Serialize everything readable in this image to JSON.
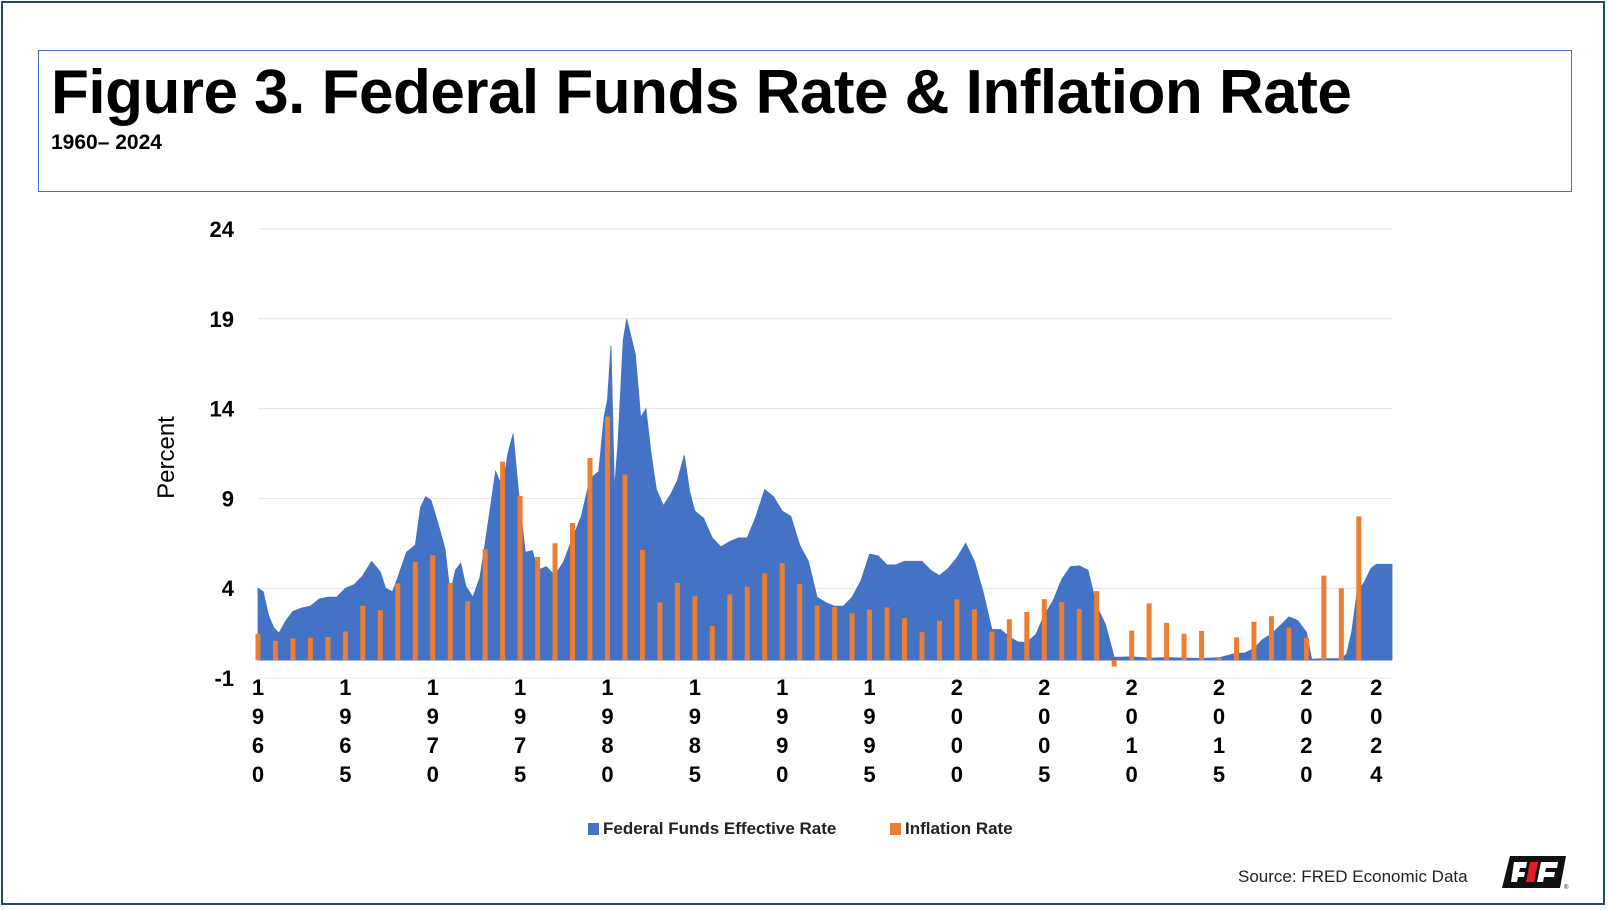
{
  "header": {
    "title": "Figure 3. Federal Funds Rate & Inflation Rate",
    "subtitle": "1960– 2024"
  },
  "source": "Source: FRED Economic Data",
  "logo_icon": "farm-bureau-logo-icon",
  "colors": {
    "funds": "#4472c4",
    "inflation": "#ed7d31",
    "grid": "#e4e4e4",
    "frame": "#1f4e5a"
  },
  "chart_data": {
    "type": "area",
    "title": "",
    "ylabel": "Percent",
    "ylim": [
      -1,
      24
    ],
    "yticks": [
      -1,
      4,
      9,
      14,
      19,
      24
    ],
    "xlim": [
      1960,
      2024.9
    ],
    "xticks": [
      "1960",
      "1965",
      "1970",
      "1975",
      "1980",
      "1985",
      "1990",
      "1995",
      "2000",
      "2005",
      "2010",
      "2015",
      "2020",
      "2024"
    ],
    "legend": {
      "placement": "bottom",
      "entries": [
        "Federal Funds Effective Rate",
        "Inflation Rate"
      ]
    },
    "grid": true,
    "series": [
      {
        "name": "Federal Funds Effective Rate",
        "type": "area",
        "x": [
          1960.0,
          1960.3,
          1960.6,
          1960.9,
          1961.2,
          1961.6,
          1962.0,
          1962.5,
          1963.0,
          1963.5,
          1964.0,
          1964.5,
          1965.0,
          1965.5,
          1966.0,
          1966.5,
          1967.0,
          1967.3,
          1967.7,
          1968.0,
          1968.5,
          1969.0,
          1969.3,
          1969.6,
          1969.9,
          1970.3,
          1970.7,
          1971.0,
          1971.3,
          1971.6,
          1971.9,
          1972.3,
          1972.7,
          1973.0,
          1973.3,
          1973.6,
          1974.0,
          1974.3,
          1974.6,
          1974.9,
          1975.3,
          1975.7,
          1976.0,
          1976.5,
          1977.0,
          1977.5,
          1978.0,
          1978.5,
          1979.0,
          1979.5,
          1979.8,
          1980.0,
          1980.2,
          1980.4,
          1980.6,
          1980.9,
          1981.1,
          1981.3,
          1981.6,
          1981.9,
          1982.2,
          1982.5,
          1982.8,
          1983.2,
          1983.6,
          1984.0,
          1984.4,
          1984.7,
          1985.0,
          1985.5,
          1986.0,
          1986.5,
          1987.0,
          1987.5,
          1988.0,
          1988.5,
          1989.0,
          1989.5,
          1990.0,
          1990.5,
          1991.0,
          1991.5,
          1992.0,
          1992.5,
          1993.0,
          1993.5,
          1994.0,
          1994.5,
          1995.0,
          1995.5,
          1996.0,
          1996.5,
          1997.0,
          1997.5,
          1998.0,
          1998.5,
          1999.0,
          1999.5,
          2000.0,
          2000.5,
          2001.0,
          2001.5,
          2002.0,
          2002.5,
          2003.0,
          2003.5,
          2004.0,
          2004.5,
          2005.0,
          2005.5,
          2006.0,
          2006.5,
          2007.0,
          2007.5,
          2008.0,
          2008.5,
          2009.0,
          2010.0,
          2011.0,
          2012.0,
          2013.0,
          2014.0,
          2015.0,
          2015.9,
          2016.5,
          2017.0,
          2017.5,
          2018.0,
          2018.5,
          2019.0,
          2019.5,
          2020.0,
          2020.3,
          2021.0,
          2022.0,
          2022.3,
          2022.6,
          2022.9,
          2023.3,
          2023.7,
          2024.0,
          2024.9
        ],
        "values": [
          4.0,
          3.8,
          2.5,
          1.8,
          1.5,
          2.2,
          2.7,
          2.9,
          3.0,
          3.4,
          3.5,
          3.5,
          4.0,
          4.2,
          4.7,
          5.5,
          4.9,
          4.0,
          3.8,
          4.6,
          6.0,
          6.4,
          8.5,
          9.1,
          8.9,
          7.6,
          6.2,
          3.7,
          5.0,
          5.4,
          4.1,
          3.5,
          4.6,
          6.5,
          8.5,
          10.5,
          9.6,
          11.5,
          12.6,
          9.5,
          6.0,
          6.1,
          5.0,
          5.2,
          4.7,
          5.5,
          6.8,
          8.0,
          10.1,
          10.5,
          13.5,
          14.5,
          17.5,
          9.5,
          12.0,
          17.8,
          19.0,
          18.2,
          17.0,
          13.5,
          14.0,
          11.5,
          9.5,
          8.6,
          9.2,
          10.0,
          11.4,
          9.4,
          8.3,
          7.9,
          6.8,
          6.3,
          6.6,
          6.8,
          6.8,
          8.0,
          9.5,
          9.1,
          8.3,
          8.0,
          6.4,
          5.5,
          3.5,
          3.2,
          3.0,
          3.0,
          3.5,
          4.4,
          5.9,
          5.8,
          5.3,
          5.3,
          5.5,
          5.5,
          5.5,
          5.0,
          4.7,
          5.1,
          5.7,
          6.5,
          5.5,
          3.8,
          1.7,
          1.7,
          1.3,
          1.0,
          1.0,
          1.4,
          2.5,
          3.3,
          4.5,
          5.2,
          5.25,
          5.0,
          3.0,
          2.0,
          0.15,
          0.18,
          0.1,
          0.14,
          0.11,
          0.09,
          0.13,
          0.36,
          0.4,
          0.66,
          1.15,
          1.45,
          1.92,
          2.4,
          2.2,
          1.55,
          0.05,
          0.08,
          0.08,
          0.33,
          1.6,
          3.8,
          4.3,
          5.1,
          5.33,
          5.33
        ]
      },
      {
        "name": "Inflation Rate",
        "type": "bar",
        "x": [
          1960,
          1961,
          1962,
          1963,
          1964,
          1965,
          1966,
          1967,
          1968,
          1969,
          1970,
          1971,
          1972,
          1973,
          1974,
          1975,
          1976,
          1977,
          1978,
          1979,
          1980,
          1981,
          1982,
          1983,
          1984,
          1985,
          1986,
          1987,
          1988,
          1989,
          1990,
          1991,
          1992,
          1993,
          1994,
          1995,
          1996,
          1997,
          1998,
          1999,
          2000,
          2001,
          2002,
          2003,
          2004,
          2005,
          2006,
          2007,
          2008,
          2009,
          2010,
          2011,
          2012,
          2013,
          2014,
          2015,
          2016,
          2017,
          2018,
          2019,
          2020,
          2021,
          2022,
          2023
        ],
        "values": [
          1.46,
          1.07,
          1.2,
          1.24,
          1.28,
          1.59,
          3.02,
          2.77,
          4.27,
          5.46,
          5.84,
          4.29,
          3.27,
          6.18,
          11.05,
          9.14,
          5.74,
          6.5,
          7.63,
          11.25,
          13.55,
          10.33,
          6.13,
          3.21,
          4.3,
          3.55,
          1.9,
          3.66,
          4.08,
          4.83,
          5.4,
          4.24,
          3.03,
          2.95,
          2.61,
          2.81,
          2.93,
          2.34,
          1.55,
          2.19,
          3.38,
          2.83,
          1.59,
          2.27,
          2.68,
          3.39,
          3.23,
          2.85,
          3.84,
          -0.36,
          1.64,
          3.16,
          2.07,
          1.46,
          1.62,
          0.12,
          1.26,
          2.13,
          2.44,
          1.81,
          1.23,
          4.7,
          4.0,
          8.0
        ]
      }
    ]
  }
}
